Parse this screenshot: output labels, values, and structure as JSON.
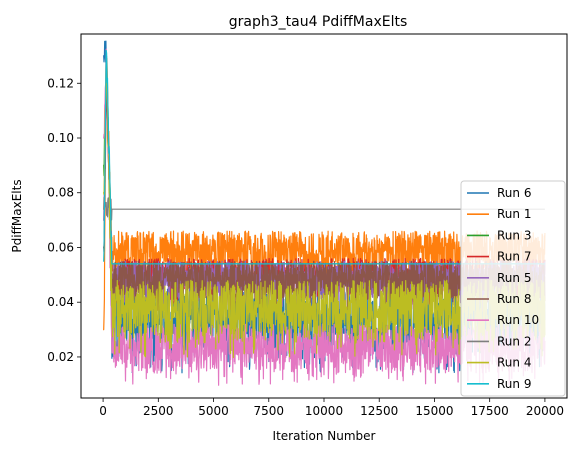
{
  "chart_data": {
    "type": "line",
    "title": "graph3_tau4 PdiffMaxElts",
    "xlabel": "Iteration Number",
    "ylabel": "PdiffMaxElts",
    "xlim": [
      -1000,
      21000
    ],
    "ylim": [
      0.005,
      0.138
    ],
    "x_ticks": [
      0,
      2500,
      5000,
      7500,
      10000,
      12500,
      15000,
      17500,
      20000
    ],
    "x_tick_labels": [
      "0",
      "2500",
      "5000",
      "7500",
      "10000",
      "12500",
      "15000",
      "17500",
      "20000"
    ],
    "y_ticks": [
      0.02,
      0.04,
      0.06,
      0.08,
      0.1,
      0.12
    ],
    "y_tick_labels": [
      "0.02",
      "0.04",
      "0.06",
      "0.08",
      "0.10",
      "0.12"
    ],
    "grid": false,
    "legend_position": "lower-right",
    "series": [
      {
        "name": "Run 6",
        "color": "#1f77b4",
        "start": 0.13,
        "peak": 0.132,
        "plateau_low": 0.02,
        "plateau_high": 0.045,
        "x_max": 20000
      },
      {
        "name": "Run 1",
        "color": "#ff7f0e",
        "start": 0.03,
        "peak": 0.13,
        "plateau_low": 0.05,
        "plateau_high": 0.066,
        "x_max": 20000
      },
      {
        "name": "Run 3",
        "color": "#2ca02c",
        "start": 0.09,
        "peak": 0.125,
        "plateau_low": 0.054,
        "plateau_high": 0.054,
        "x_max": 20000
      },
      {
        "name": "Run 7",
        "color": "#d62728",
        "start": 0.06,
        "peak": 0.12,
        "plateau_low": 0.042,
        "plateau_high": 0.056,
        "x_max": 20000
      },
      {
        "name": "Run 5",
        "color": "#9467bd",
        "start": 0.07,
        "peak": 0.128,
        "plateau_low": 0.04,
        "plateau_high": 0.055,
        "x_max": 20000
      },
      {
        "name": "Run 8",
        "color": "#8c564b",
        "start": 0.06,
        "peak": 0.125,
        "plateau_low": 0.04,
        "plateau_high": 0.055,
        "x_max": 20000
      },
      {
        "name": "Run 10",
        "color": "#e377c2",
        "start": 0.1,
        "peak": 0.133,
        "plateau_low": 0.014,
        "plateau_high": 0.032,
        "x_max": 20000
      },
      {
        "name": "Run 2",
        "color": "#7f7f7f",
        "start": 0.074,
        "peak": 0.074,
        "plateau_low": 0.074,
        "plateau_high": 0.074,
        "x_max": 20000
      },
      {
        "name": "Run 4",
        "color": "#bcbd22",
        "start": 0.08,
        "peak": 0.13,
        "plateau_low": 0.025,
        "plateau_high": 0.048,
        "x_max": 20000
      },
      {
        "name": "Run 9",
        "color": "#17becf",
        "start": 0.055,
        "peak": 0.133,
        "plateau_low": 0.054,
        "plateau_high": 0.054,
        "x_max": 20000
      }
    ]
  }
}
